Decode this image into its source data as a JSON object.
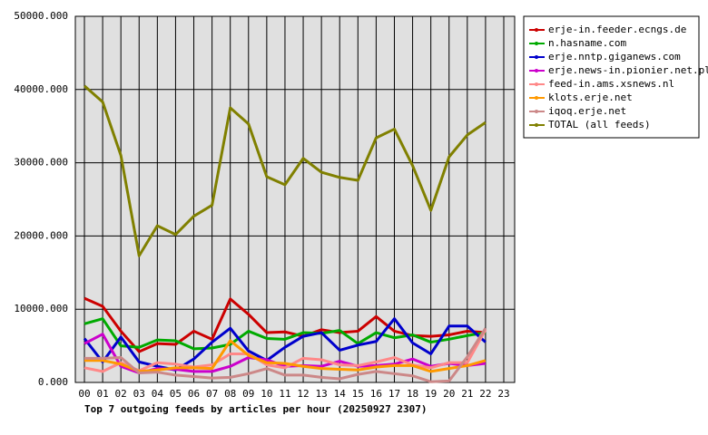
{
  "chart_data": {
    "type": "line",
    "title": "Top 7 outgoing feeds by articles per hour (20250927 2307)",
    "categories": [
      "00",
      "01",
      "02",
      "03",
      "04",
      "05",
      "06",
      "07",
      "08",
      "09",
      "10",
      "11",
      "12",
      "13",
      "14",
      "15",
      "16",
      "17",
      "18",
      "19",
      "20",
      "21",
      "22",
      "23"
    ],
    "ylim": [
      0,
      50000
    ],
    "yticks": [
      {
        "value": 0,
        "label": "0.000"
      },
      {
        "value": 10000,
        "label": "10000.000"
      },
      {
        "value": 20000,
        "label": "20000.000"
      },
      {
        "value": 30000,
        "label": "30000.000"
      },
      {
        "value": 40000,
        "label": "40000.000"
      },
      {
        "value": 50000,
        "label": "50000.000"
      }
    ],
    "grid": true,
    "legend": "right",
    "series": [
      {
        "name": "erje-in.feeder.ecngs.de",
        "color": "#cc0000",
        "values": [
          11500,
          10400,
          7000,
          4200,
          5300,
          5200,
          7000,
          5900,
          11400,
          9300,
          6800,
          6900,
          6300,
          7200,
          6800,
          7000,
          9000,
          7000,
          6400,
          6300,
          6500,
          7000,
          6800,
          null
        ]
      },
      {
        "name": "n.hasname.com",
        "color": "#00aa00",
        "values": [
          8000,
          8700,
          5000,
          4800,
          5800,
          5700,
          4600,
          4700,
          5200,
          7000,
          6000,
          5900,
          6800,
          6700,
          7100,
          5300,
          6800,
          6100,
          6500,
          5500,
          5900,
          6400,
          6800,
          null
        ]
      },
      {
        "name": "erje.nntp.giganews.com",
        "color": "#0000cc",
        "values": [
          6000,
          2800,
          6200,
          2800,
          2200,
          1700,
          3200,
          5500,
          7400,
          4300,
          3000,
          4800,
          6300,
          6800,
          4400,
          5100,
          5600,
          8700,
          5400,
          3900,
          7700,
          7700,
          5500,
          null
        ]
      },
      {
        "name": "erje.news-in.pionier.net.pl",
        "color": "#cc00cc",
        "values": [
          5300,
          6600,
          2200,
          1300,
          1900,
          1800,
          1500,
          1500,
          2200,
          3400,
          3100,
          2200,
          2300,
          2200,
          2900,
          2200,
          2300,
          2500,
          3200,
          2200,
          2600,
          2300,
          2600,
          null
        ]
      },
      {
        "name": "feed-in.ams.xsnews.nl",
        "color": "#ff8888",
        "values": [
          2000,
          1500,
          2700,
          1600,
          2700,
          2500,
          2100,
          2400,
          3900,
          3900,
          2400,
          2000,
          3300,
          3100,
          2400,
          2300,
          2800,
          3400,
          2400,
          2000,
          2700,
          2700,
          7200,
          null
        ]
      },
      {
        "name": "klots.erje.net",
        "color": "#ff9900",
        "values": [
          3000,
          3000,
          2500,
          1500,
          1700,
          2000,
          2000,
          1900,
          5700,
          3700,
          2700,
          2600,
          2200,
          1900,
          1800,
          1700,
          2100,
          2300,
          2300,
          1500,
          1900,
          2300,
          3000,
          null
        ]
      },
      {
        "name": "iqoq.erje.net",
        "color": "#cc8888",
        "values": [
          3300,
          3300,
          3400,
          1300,
          1400,
          1000,
          800,
          600,
          700,
          1200,
          1900,
          1000,
          1000,
          700,
          500,
          1100,
          1500,
          1200,
          900,
          100,
          200,
          3500,
          7400,
          null
        ]
      },
      {
        "name": "TOTAL (all feeds)",
        "color": "#808000",
        "values": [
          40500,
          38300,
          31000,
          17300,
          21400,
          20200,
          22700,
          24200,
          37500,
          35300,
          28100,
          27000,
          30600,
          28700,
          28000,
          27600,
          33400,
          34600,
          29600,
          23500,
          30800,
          33800,
          35500,
          null
        ]
      }
    ]
  }
}
